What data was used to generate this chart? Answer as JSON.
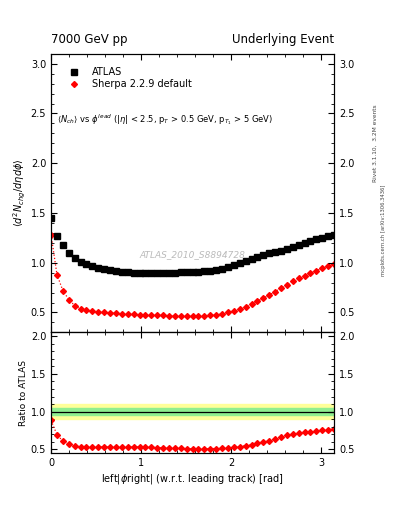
{
  "title_left": "7000 GeV pp",
  "title_right": "Underlying Event",
  "ylabel_main": "$\\langle d^2 N_{chg}/d\\eta d\\phi \\rangle$",
  "ylabel_ratio": "Ratio to ATLAS",
  "xlabel": "left|$\\phi$right| (w.r.t. leading track) [rad]",
  "annotation": "$\\langle N_{ch} \\rangle$ vs $\\phi^{lead}$ (|$\\eta$| < 2.5, p$_T$ > 0.5 GeV, p$_{T_1}$ > 5 GeV)",
  "watermark": "ATLAS_2010_S8894728",
  "rivet_label": "Rivet 3.1.10,  3.2M events",
  "arxiv_label": "mcplots.cern.ch [arXiv:1306.3436]",
  "xlim": [
    0,
    3.14159
  ],
  "ylim_main": [
    0.3,
    3.1
  ],
  "ylim_ratio": [
    0.45,
    2.05
  ],
  "yticks_main": [
    0.5,
    1.0,
    1.5,
    2.0,
    2.5,
    3.0
  ],
  "yticks_ratio": [
    0.5,
    1.0,
    1.5,
    2.0
  ],
  "xticks": [
    0,
    1,
    2,
    3
  ],
  "atlas_color": "black",
  "sherpa_color": "red",
  "band_color_inner": "#90EE90",
  "band_color_outer": "#FFFF99",
  "legend_atlas": "ATLAS",
  "legend_sherpa": "Sherpa 2.2.9 default",
  "atlas_x": [
    0.0,
    0.0654,
    0.1309,
    0.1963,
    0.2618,
    0.3272,
    0.3927,
    0.4581,
    0.5236,
    0.589,
    0.6545,
    0.7199,
    0.7854,
    0.8508,
    0.9163,
    0.9817,
    1.0472,
    1.1126,
    1.1781,
    1.2435,
    1.309,
    1.3744,
    1.4399,
    1.5053,
    1.5708,
    1.6362,
    1.7017,
    1.7671,
    1.8326,
    1.898,
    1.9635,
    2.0289,
    2.0944,
    2.1598,
    2.2253,
    2.2907,
    2.3562,
    2.4216,
    2.4871,
    2.5525,
    2.618,
    2.6834,
    2.7489,
    2.8143,
    2.8798,
    2.9452,
    3.0107,
    3.0761,
    3.1416
  ],
  "atlas_y": [
    1.45,
    1.27,
    1.18,
    1.1,
    1.05,
    1.01,
    0.99,
    0.97,
    0.95,
    0.94,
    0.93,
    0.92,
    0.91,
    0.905,
    0.9,
    0.9,
    0.895,
    0.9,
    0.9,
    0.9,
    0.9,
    0.9,
    0.905,
    0.905,
    0.91,
    0.91,
    0.915,
    0.92,
    0.93,
    0.94,
    0.96,
    0.98,
    1.0,
    1.02,
    1.04,
    1.06,
    1.08,
    1.1,
    1.11,
    1.12,
    1.14,
    1.16,
    1.18,
    1.2,
    1.22,
    1.24,
    1.25,
    1.27,
    1.28
  ],
  "sherpa_x": [
    0.0,
    0.0654,
    0.1309,
    0.1963,
    0.2618,
    0.3272,
    0.3927,
    0.4581,
    0.5236,
    0.589,
    0.6545,
    0.7199,
    0.7854,
    0.8508,
    0.9163,
    0.9817,
    1.0472,
    1.1126,
    1.1781,
    1.2435,
    1.309,
    1.3744,
    1.4399,
    1.5053,
    1.5708,
    1.6362,
    1.7017,
    1.7671,
    1.8326,
    1.898,
    1.9635,
    2.0289,
    2.0944,
    2.1598,
    2.2253,
    2.2907,
    2.3562,
    2.4216,
    2.4871,
    2.5525,
    2.618,
    2.6834,
    2.7489,
    2.8143,
    2.8798,
    2.9452,
    3.0107,
    3.0761,
    3.1416
  ],
  "sherpa_y": [
    1.28,
    0.88,
    0.72,
    0.63,
    0.57,
    0.54,
    0.52,
    0.51,
    0.505,
    0.5,
    0.495,
    0.49,
    0.485,
    0.482,
    0.48,
    0.478,
    0.476,
    0.474,
    0.472,
    0.47,
    0.468,
    0.466,
    0.464,
    0.462,
    0.46,
    0.462,
    0.465,
    0.47,
    0.475,
    0.485,
    0.5,
    0.515,
    0.535,
    0.56,
    0.585,
    0.615,
    0.645,
    0.675,
    0.71,
    0.745,
    0.78,
    0.815,
    0.845,
    0.87,
    0.895,
    0.92,
    0.945,
    0.965,
    0.99
  ]
}
